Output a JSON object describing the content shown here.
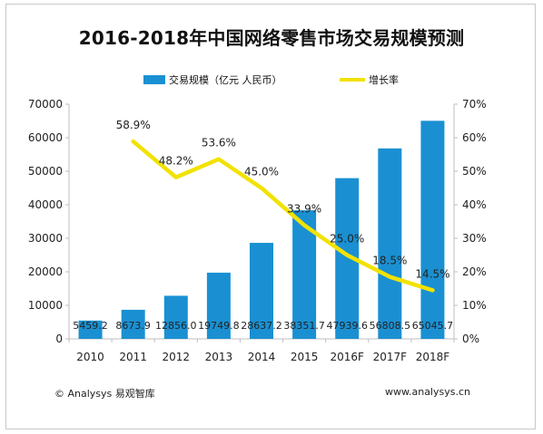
{
  "title": "2016-2018年中国网络零售市场交易规模预测",
  "footer": {
    "left": "© Analysys 易观智库",
    "right": "www.analysys.cn"
  },
  "colors": {
    "bar": "#1a90d2",
    "line": "#f2e200",
    "axis": "#bfbfbf"
  },
  "chart_data": {
    "type": "bar",
    "title": "2016-2018年中国网络零售市场交易规模预测",
    "categories": [
      "2010",
      "2011",
      "2012",
      "2013",
      "2014",
      "2015",
      "2016F",
      "2017F",
      "2018F"
    ],
    "series": [
      {
        "name": "交易规模（亿元 人民币）",
        "type": "bar",
        "axis": "left",
        "values": [
          5459.2,
          8673.9,
          12856.0,
          19749.8,
          28637.2,
          38351.7,
          47939.6,
          56808.5,
          65045.7
        ],
        "labels": [
          "5459.2",
          "8673.9",
          "12856.0",
          "19749.8",
          "28637.2",
          "38351.7",
          "47939.6",
          "56808.5",
          "65045.7"
        ]
      },
      {
        "name": "增长率",
        "type": "line",
        "axis": "right",
        "values": [
          null,
          58.9,
          48.2,
          53.6,
          45.0,
          33.9,
          25.0,
          18.5,
          14.5
        ],
        "labels": [
          "",
          "58.9%",
          "48.2%",
          "53.6%",
          "45.0%",
          "33.9%",
          "25.0%",
          "18.5%",
          "14.5%"
        ]
      }
    ],
    "ylim": [
      0,
      70000
    ],
    "yticks": [
      "0",
      "10000",
      "20000",
      "30000",
      "40000",
      "50000",
      "60000",
      "70000"
    ],
    "y2lim": [
      0,
      70
    ],
    "y2ticks": [
      "0%",
      "10%",
      "20%",
      "30%",
      "40%",
      "50%",
      "60%",
      "70%"
    ],
    "legend_position": "top-center",
    "grid": false
  }
}
